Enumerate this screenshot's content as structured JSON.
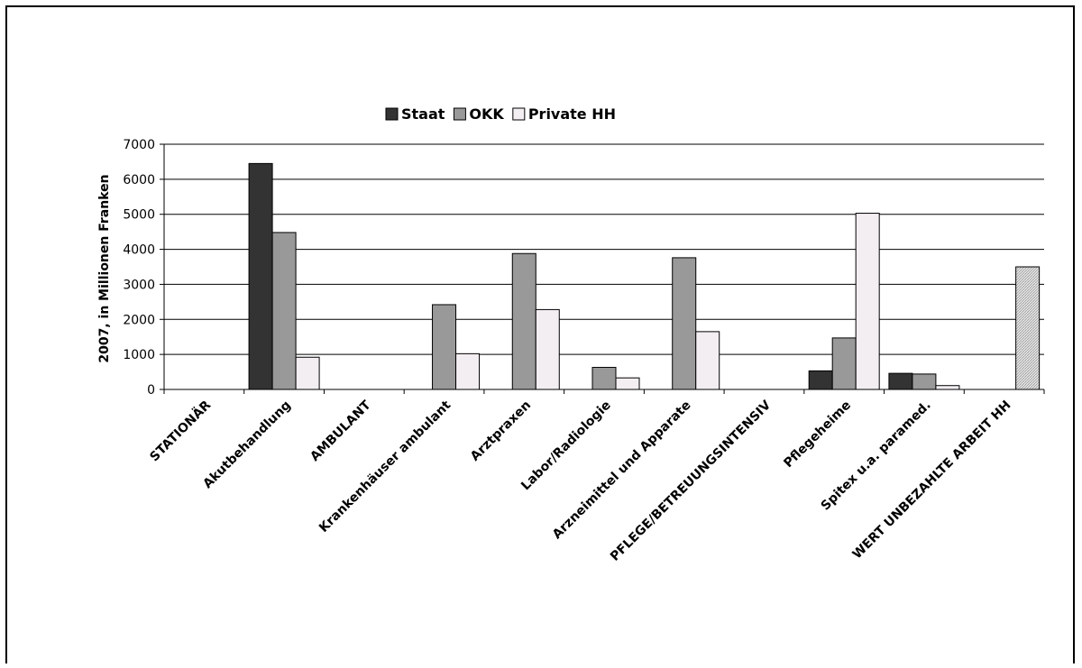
{
  "chart_data": {
    "type": "bar",
    "title": "",
    "xlabel": "",
    "ylabel": "2007, in Millionen Franken",
    "ylim": [
      0,
      7000
    ],
    "yticks": [
      0,
      1000,
      2000,
      3000,
      4000,
      5000,
      6000,
      7000
    ],
    "grid": true,
    "legend_position": "top",
    "categories": [
      "STATIONÄR",
      "Akutbehandlung",
      "AMBULANT",
      "Krankenhäuser ambulant",
      "Arztpraxen",
      "Labor/Radiologie",
      "Arzneimittel und Apparate",
      "PFLEGE/BETREUUNGSINTENSIV",
      "Pflegeheime",
      "Spitex u.a. paramed.",
      "WERT UNBEZAHLTE ARBEIT HH"
    ],
    "series": [
      {
        "name": "Staat",
        "color": "#333333",
        "values": [
          0,
          6450,
          0,
          0,
          0,
          0,
          0,
          0,
          530,
          460,
          0
        ]
      },
      {
        "name": "OKK",
        "color": "#999999",
        "values": [
          0,
          4480,
          0,
          2420,
          3880,
          630,
          3760,
          0,
          1470,
          440,
          0
        ]
      },
      {
        "name": "Private HH",
        "color": "#f3eef2",
        "values": [
          0,
          920,
          0,
          1020,
          2280,
          330,
          1650,
          0,
          5030,
          110,
          3500
        ]
      }
    ],
    "special_colors": {
      "hatched_bar": "#d8d8d8"
    }
  }
}
